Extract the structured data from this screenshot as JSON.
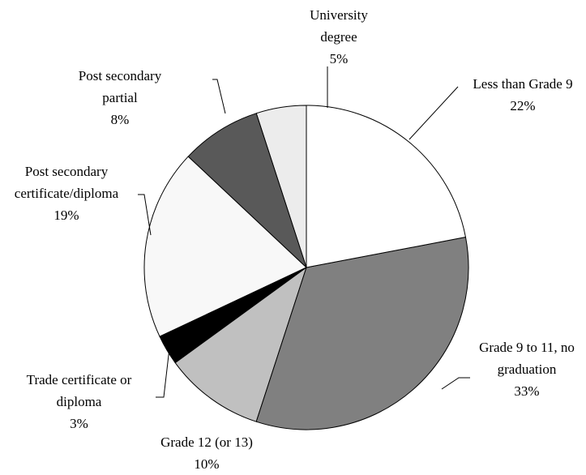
{
  "chart_data": {
    "type": "pie",
    "categories": [
      "Less than Grade 9",
      "Grade 9 to 11, no graduation",
      "Grade 12 (or 13)",
      "Trade certificate or diploma",
      "Post secondary certificate/diploma",
      "Post secondary partial",
      "University degree"
    ],
    "values": [
      22,
      33,
      10,
      3,
      19,
      8,
      5
    ],
    "value_labels": [
      "22%",
      "33%",
      "10%",
      "3%",
      "19%",
      "8%",
      "5%"
    ],
    "colors": [
      "#ffffff",
      "#808080",
      "#c0c0c0",
      "#000000",
      "#f8f8f8",
      "#595959",
      "#ececec"
    ]
  }
}
